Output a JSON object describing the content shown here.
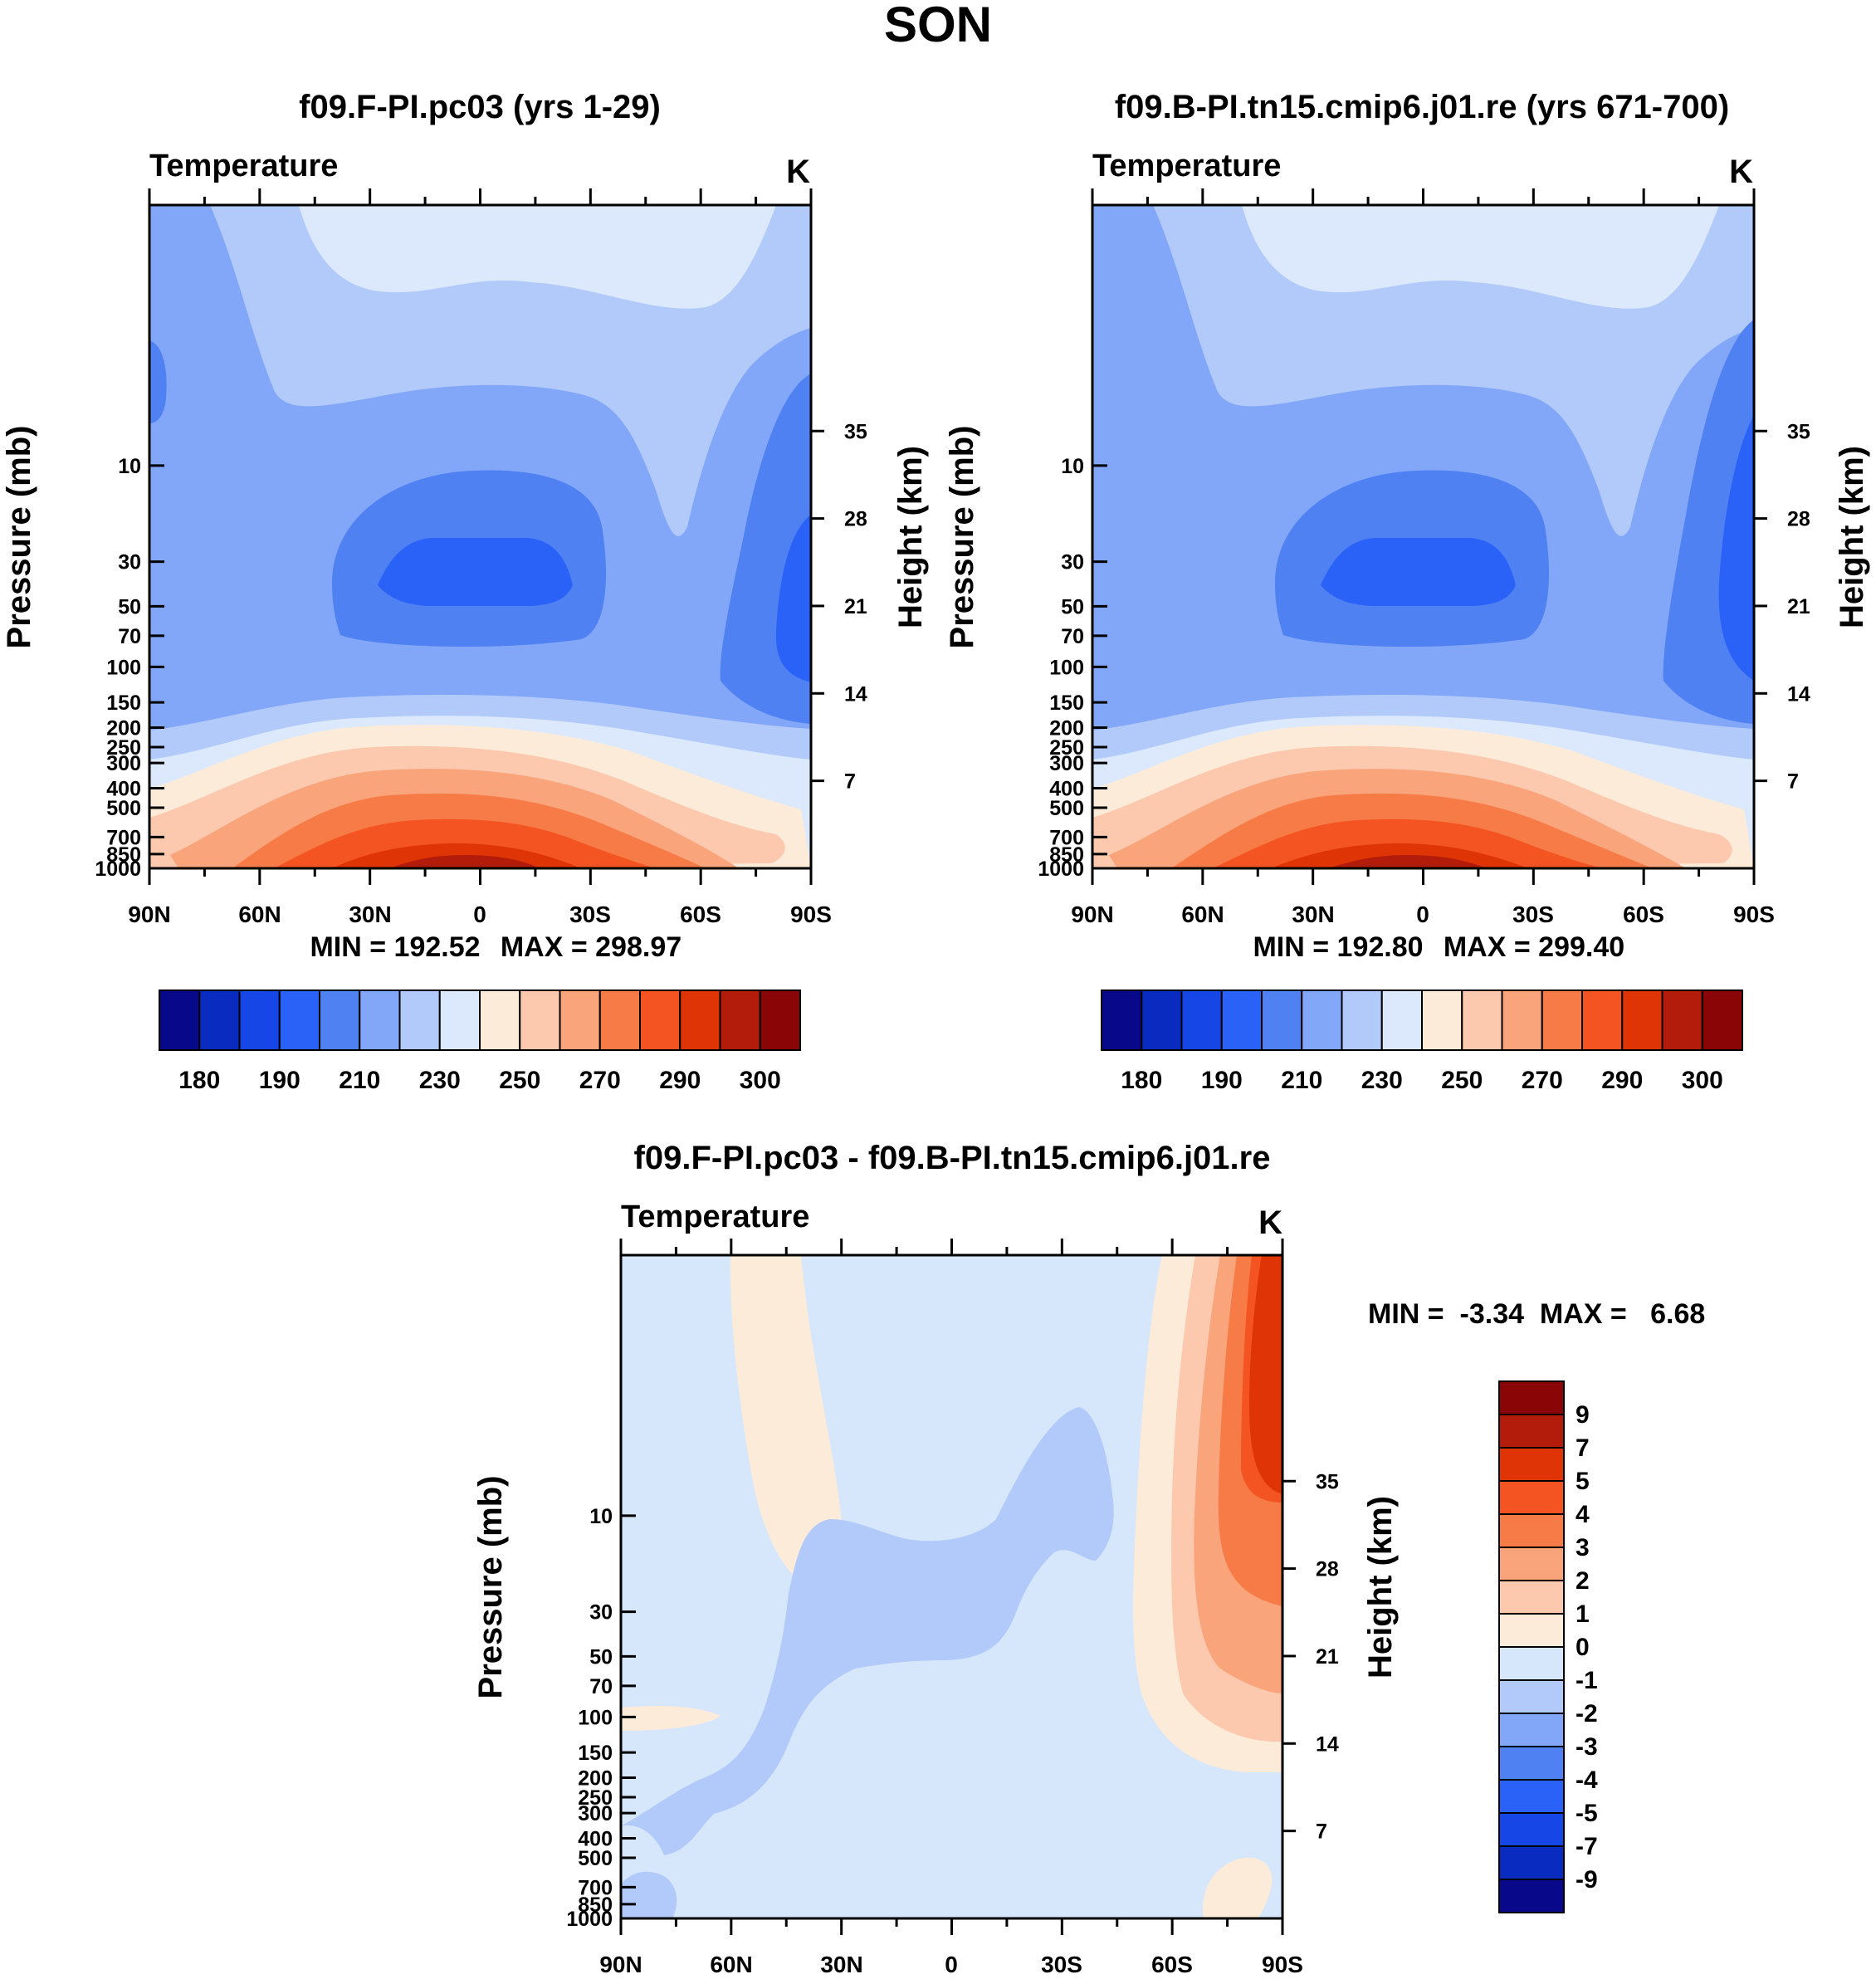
{
  "figure_title": "SON",
  "chart_data": [
    {
      "type": "contour",
      "title": "f09.F-PI.pc03 (yrs 1-29)",
      "left_string": "Temperature",
      "right_string": "K",
      "ylabel": "Pressure (mb)",
      "y2label": "Height (km)",
      "x_ticks": [
        "90N",
        "60N",
        "30N",
        "0",
        "30S",
        "60S",
        "90S"
      ],
      "pressure_ticks": [
        10,
        30,
        50,
        70,
        100,
        150,
        200,
        250,
        300,
        400,
        500,
        700,
        850,
        1000
      ],
      "height_ticks": [
        35,
        28,
        21,
        14,
        7
      ],
      "min_label": "MIN = 192.52",
      "max_label": "MAX = 298.97",
      "min": 192.52,
      "max": 298.97
    },
    {
      "type": "contour",
      "title": "f09.B-PI.tn15.cmip6.j01.re (yrs 671-700)",
      "left_string": "Temperature",
      "right_string": "K",
      "ylabel": "Pressure (mb)",
      "y2label": "Height (km)",
      "x_ticks": [
        "90N",
        "60N",
        "30N",
        "0",
        "30S",
        "60S",
        "90S"
      ],
      "pressure_ticks": [
        10,
        30,
        50,
        70,
        100,
        150,
        200,
        250,
        300,
        400,
        500,
        700,
        850,
        1000
      ],
      "height_ticks": [
        35,
        28,
        21,
        14,
        7
      ],
      "min_label": "MIN = 192.80",
      "max_label": "MAX = 299.40",
      "min": 192.8,
      "max": 299.4
    },
    {
      "type": "contour",
      "title": "f09.F-PI.pc03 - f09.B-PI.tn15.cmip6.j01.re",
      "left_string": "Temperature",
      "right_string": "K",
      "ylabel": "Pressure (mb)",
      "y2label": "Height (km)",
      "x_ticks": [
        "90N",
        "60N",
        "30N",
        "0",
        "30S",
        "60S",
        "90S"
      ],
      "pressure_ticks": [
        10,
        30,
        50,
        70,
        100,
        150,
        200,
        250,
        300,
        400,
        500,
        700,
        850,
        1000
      ],
      "height_ticks": [
        35,
        28,
        21,
        14,
        7
      ],
      "minmax_label": "MIN =  -3.34  MAX =   6.68",
      "min": -3.34,
      "max": 6.68
    }
  ],
  "colorbar_temperature": {
    "labels": [
      "180",
      "190",
      "210",
      "230",
      "250",
      "270",
      "290",
      "300"
    ],
    "colors": [
      "#08088a",
      "#0a2bbf",
      "#1646e6",
      "#2a62f7",
      "#4f81f2",
      "#82a7f9",
      "#b2caf9",
      "#dce9fc",
      "#fdebd9",
      "#fcc9ae",
      "#f9a47a",
      "#f77b47",
      "#f35421",
      "#df3506",
      "#b31c0a",
      "#8a0606"
    ]
  },
  "colorbar_difference": {
    "labels": [
      "9",
      "7",
      "5",
      "4",
      "3",
      "2",
      "1",
      "0",
      "-1",
      "-2",
      "-3",
      "-4",
      "-5",
      "-7",
      "-9"
    ],
    "colors": [
      "#8a0606",
      "#b31c0a",
      "#df3506",
      "#f35421",
      "#f77b47",
      "#f9a47a",
      "#fcc9ae",
      "#fdebd9",
      "#d6e6fb",
      "#b2caf9",
      "#82a7f9",
      "#4f81f2",
      "#2a62f7",
      "#1646e6",
      "#0a2bbf",
      "#08088a"
    ]
  }
}
